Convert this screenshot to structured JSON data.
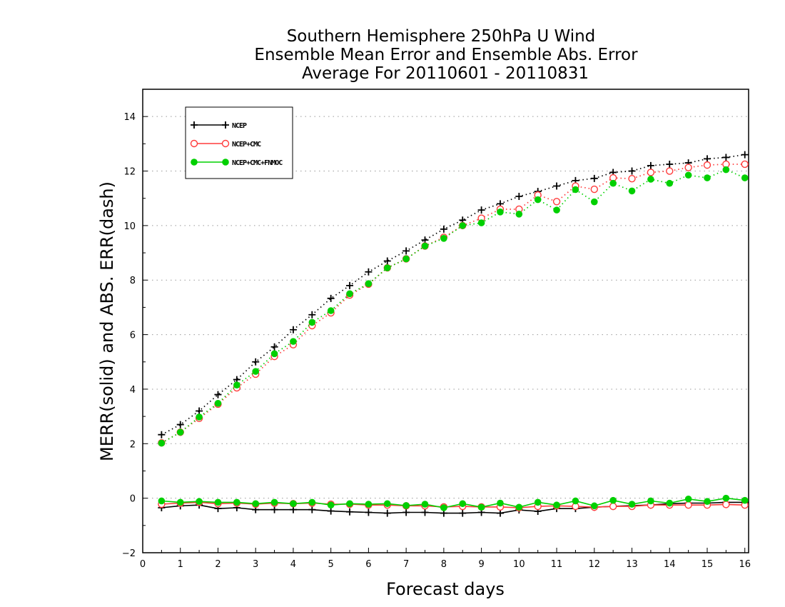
{
  "chart_data": {
    "type": "line",
    "title_lines": [
      "Southern Hemisphere 250hPa U Wind",
      "Ensemble Mean Error and Ensemble Abs. Error",
      "Average For 20110601 - 20110831"
    ],
    "xlabel": "Forecast days",
    "ylabel": "MERR(solid) and ABS. ERR(dash)",
    "xlim": [
      0,
      16.1
    ],
    "ylim": [
      -2,
      15
    ],
    "xticks": [
      0,
      1,
      2,
      3,
      4,
      5,
      6,
      7,
      8,
      9,
      10,
      11,
      12,
      13,
      14,
      15,
      16
    ],
    "yticks": [
      -2,
      0,
      2,
      4,
      6,
      8,
      10,
      12,
      14
    ],
    "grid_y": [
      0,
      2,
      4,
      6,
      8,
      10,
      12,
      14
    ],
    "legend_position": "top-left",
    "x": [
      0.5,
      1,
      1.5,
      2,
      2.5,
      3,
      3.5,
      4,
      4.5,
      5,
      5.5,
      6,
      6.5,
      7,
      7.5,
      8,
      8.5,
      9,
      9.5,
      10,
      10.5,
      11,
      11.5,
      12,
      12.5,
      13,
      13.5,
      14,
      14.5,
      15,
      15.5,
      16
    ],
    "series": [
      {
        "name": "NCEP",
        "color": "#000000",
        "marker": "plus",
        "abs_err": [
          2.33,
          2.7,
          3.2,
          3.8,
          4.35,
          5.0,
          5.55,
          6.18,
          6.73,
          7.33,
          7.8,
          8.3,
          8.7,
          9.07,
          9.47,
          9.87,
          10.2,
          10.57,
          10.8,
          11.07,
          11.25,
          11.45,
          11.65,
          11.73,
          11.95,
          12.0,
          12.2,
          12.25,
          12.3,
          12.45,
          12.5,
          12.6
        ],
        "mean_err": [
          -0.35,
          -0.28,
          -0.25,
          -0.38,
          -0.35,
          -0.42,
          -0.42,
          -0.42,
          -0.42,
          -0.47,
          -0.5,
          -0.52,
          -0.55,
          -0.52,
          -0.52,
          -0.55,
          -0.55,
          -0.52,
          -0.55,
          -0.43,
          -0.48,
          -0.38,
          -0.38,
          -0.33,
          -0.3,
          -0.27,
          -0.25,
          -0.2,
          -0.18,
          -0.18,
          -0.15,
          -0.15
        ]
      },
      {
        "name": "NCEP+CMC",
        "color": "#ff3b3b",
        "marker": "open-circle",
        "abs_err": [
          2.03,
          2.42,
          2.93,
          3.45,
          4.05,
          4.55,
          5.2,
          5.63,
          6.33,
          6.8,
          7.45,
          7.85,
          8.45,
          8.78,
          9.25,
          9.57,
          10.0,
          10.27,
          10.6,
          10.6,
          11.12,
          10.88,
          11.45,
          11.33,
          11.75,
          11.72,
          11.95,
          12.0,
          12.13,
          12.22,
          12.25,
          12.25
        ],
        "mean_err": [
          -0.22,
          -0.18,
          -0.15,
          -0.2,
          -0.18,
          -0.22,
          -0.18,
          -0.2,
          -0.18,
          -0.22,
          -0.22,
          -0.25,
          -0.25,
          -0.28,
          -0.28,
          -0.32,
          -0.3,
          -0.32,
          -0.32,
          -0.35,
          -0.3,
          -0.28,
          -0.3,
          -0.33,
          -0.3,
          -0.3,
          -0.25,
          -0.25,
          -0.25,
          -0.25,
          -0.23,
          -0.25
        ]
      },
      {
        "name": "NCEP+CMC+FNMOC",
        "color": "#00d000",
        "marker": "filled-circle",
        "abs_err": [
          2.02,
          2.42,
          2.98,
          3.48,
          4.15,
          4.65,
          5.3,
          5.75,
          6.45,
          6.88,
          7.5,
          7.87,
          8.45,
          8.78,
          9.25,
          9.53,
          10.0,
          10.1,
          10.5,
          10.42,
          10.95,
          10.57,
          11.32,
          10.87,
          11.55,
          11.27,
          11.7,
          11.55,
          11.85,
          11.75,
          12.05,
          11.75
        ],
        "mean_err": [
          -0.1,
          -0.15,
          -0.12,
          -0.15,
          -0.15,
          -0.2,
          -0.15,
          -0.2,
          -0.15,
          -0.25,
          -0.2,
          -0.22,
          -0.2,
          -0.27,
          -0.22,
          -0.35,
          -0.2,
          -0.33,
          -0.18,
          -0.33,
          -0.15,
          -0.25,
          -0.1,
          -0.28,
          -0.08,
          -0.22,
          -0.1,
          -0.18,
          -0.03,
          -0.12,
          0.0,
          -0.08
        ]
      }
    ]
  }
}
